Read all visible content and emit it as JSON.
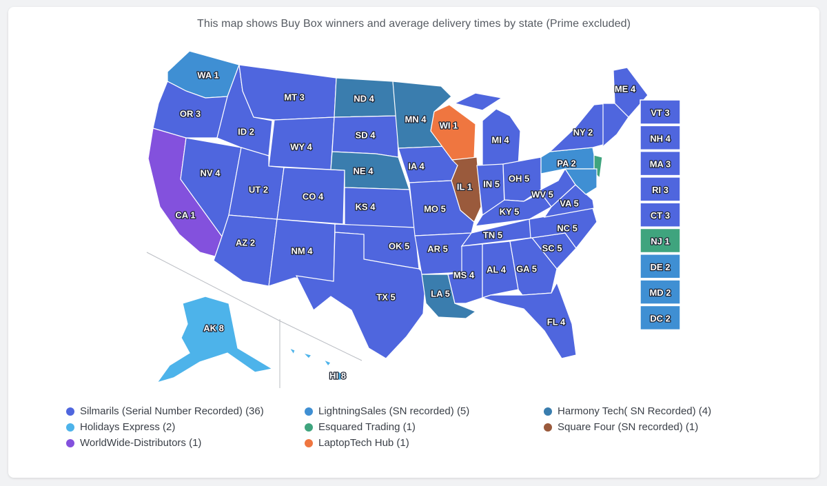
{
  "title": "This map shows Buy Box winners and average delivery times by state (Prime excluded)",
  "colors": {
    "silmarils": "#4f66de",
    "lightningsales": "#3f8fd3",
    "harmony": "#3a7dae",
    "holidays": "#4db3ea",
    "esquared": "#3fa47e",
    "squarefour": "#9a5a3c",
    "worldwide": "#8351dd",
    "laptoptech": "#ef7640"
  },
  "legend": [
    {
      "label": "Silmarils (Serial Number Recorded) (36)",
      "color_key": "silmarils"
    },
    {
      "label": "LightningSales (SN recorded) (5)",
      "color_key": "lightningsales"
    },
    {
      "label": "Harmony Tech( SN Recorded) (4)",
      "color_key": "harmony"
    },
    {
      "label": "Holidays Express (2)",
      "color_key": "holidays"
    },
    {
      "label": "Esquared Trading (1)",
      "color_key": "esquared"
    },
    {
      "label": "Square Four (SN recorded) (1)",
      "color_key": "squarefour"
    },
    {
      "label": "WorldWide-Distributors (1)",
      "color_key": "worldwide"
    },
    {
      "label": "LaptopTech Hub (1)",
      "color_key": "laptoptech"
    }
  ],
  "states": [
    {
      "abbr": "WA",
      "days": 1,
      "label": "WA 1",
      "winner": "lightningsales"
    },
    {
      "abbr": "OR",
      "days": 3,
      "label": "OR 3",
      "winner": "silmarils"
    },
    {
      "abbr": "CA",
      "days": 1,
      "label": "CA 1",
      "winner": "worldwide"
    },
    {
      "abbr": "ID",
      "days": 2,
      "label": "ID 2",
      "winner": "silmarils"
    },
    {
      "abbr": "NV",
      "days": 4,
      "label": "NV 4",
      "winner": "silmarils"
    },
    {
      "abbr": "MT",
      "days": 3,
      "label": "MT 3",
      "winner": "silmarils"
    },
    {
      "abbr": "WY",
      "days": 4,
      "label": "WY 4",
      "winner": "silmarils"
    },
    {
      "abbr": "UT",
      "days": 2,
      "label": "UT 2",
      "winner": "silmarils"
    },
    {
      "abbr": "AZ",
      "days": 2,
      "label": "AZ 2",
      "winner": "silmarils"
    },
    {
      "abbr": "CO",
      "days": 4,
      "label": "CO 4",
      "winner": "silmarils"
    },
    {
      "abbr": "NM",
      "days": 4,
      "label": "NM 4",
      "winner": "silmarils"
    },
    {
      "abbr": "ND",
      "days": 4,
      "label": "ND 4",
      "winner": "harmony"
    },
    {
      "abbr": "SD",
      "days": 4,
      "label": "SD 4",
      "winner": "silmarils"
    },
    {
      "abbr": "NE",
      "days": 4,
      "label": "NE 4",
      "winner": "harmony"
    },
    {
      "abbr": "KS",
      "days": 4,
      "label": "KS 4",
      "winner": "silmarils"
    },
    {
      "abbr": "OK",
      "days": 5,
      "label": "OK 5",
      "winner": "silmarils"
    },
    {
      "abbr": "TX",
      "days": 5,
      "label": "TX 5",
      "winner": "silmarils"
    },
    {
      "abbr": "MN",
      "days": 4,
      "label": "MN 4",
      "winner": "harmony"
    },
    {
      "abbr": "IA",
      "days": 4,
      "label": "IA 4",
      "winner": "silmarils"
    },
    {
      "abbr": "MO",
      "days": 5,
      "label": "MO 5",
      "winner": "silmarils"
    },
    {
      "abbr": "AR",
      "days": 5,
      "label": "AR 5",
      "winner": "silmarils"
    },
    {
      "abbr": "LA",
      "days": 5,
      "label": "LA 5",
      "winner": "harmony"
    },
    {
      "abbr": "WI",
      "days": 1,
      "label": "WI 1",
      "winner": "laptoptech"
    },
    {
      "abbr": "IL",
      "days": 1,
      "label": "IL 1",
      "winner": "squarefour"
    },
    {
      "abbr": "MI",
      "days": 4,
      "label": "MI 4",
      "winner": "silmarils"
    },
    {
      "abbr": "IN",
      "days": 5,
      "label": "IN 5",
      "winner": "silmarils"
    },
    {
      "abbr": "OH",
      "days": 5,
      "label": "OH 5",
      "winner": "silmarils"
    },
    {
      "abbr": "KY",
      "days": 5,
      "label": "KY 5",
      "winner": "silmarils"
    },
    {
      "abbr": "TN",
      "days": 5,
      "label": "TN 5",
      "winner": "silmarils"
    },
    {
      "abbr": "MS",
      "days": 4,
      "label": "MS 4",
      "winner": "silmarils"
    },
    {
      "abbr": "AL",
      "days": 4,
      "label": "AL 4",
      "winner": "silmarils"
    },
    {
      "abbr": "GA",
      "days": 5,
      "label": "GA 5",
      "winner": "silmarils"
    },
    {
      "abbr": "FL",
      "days": 4,
      "label": "FL 4",
      "winner": "silmarils"
    },
    {
      "abbr": "SC",
      "days": 5,
      "label": "SC 5",
      "winner": "silmarils"
    },
    {
      "abbr": "NC",
      "days": 5,
      "label": "NC 5",
      "winner": "silmarils"
    },
    {
      "abbr": "VA",
      "days": 5,
      "label": "VA 5",
      "winner": "silmarils"
    },
    {
      "abbr": "WV",
      "days": 5,
      "label": "WV 5",
      "winner": "silmarils"
    },
    {
      "abbr": "PA",
      "days": 2,
      "label": "PA 2",
      "winner": "lightningsales"
    },
    {
      "abbr": "NY",
      "days": 2,
      "label": "NY 2",
      "winner": "silmarils"
    },
    {
      "abbr": "ME",
      "days": 4,
      "label": "ME 4",
      "winner": "silmarils"
    },
    {
      "abbr": "AK",
      "days": 8,
      "label": "AK 8",
      "winner": "holidays"
    },
    {
      "abbr": "HI",
      "days": 8,
      "label": "HI 8",
      "winner": "holidays"
    }
  ],
  "small_states": [
    {
      "abbr": "VT",
      "days": 3,
      "label": "VT 3",
      "winner": "silmarils"
    },
    {
      "abbr": "NH",
      "days": 4,
      "label": "NH 4",
      "winner": "silmarils"
    },
    {
      "abbr": "MA",
      "days": 3,
      "label": "MA 3",
      "winner": "silmarils"
    },
    {
      "abbr": "RI",
      "days": 3,
      "label": "RI 3",
      "winner": "silmarils"
    },
    {
      "abbr": "CT",
      "days": 3,
      "label": "CT 3",
      "winner": "silmarils"
    },
    {
      "abbr": "NJ",
      "days": 1,
      "label": "NJ 1",
      "winner": "esquared"
    },
    {
      "abbr": "DE",
      "days": 2,
      "label": "DE 2",
      "winner": "lightningsales"
    },
    {
      "abbr": "MD",
      "days": 2,
      "label": "MD 2",
      "winner": "lightningsales"
    },
    {
      "abbr": "DC",
      "days": 2,
      "label": "DC 2",
      "winner": "lightningsales"
    }
  ]
}
